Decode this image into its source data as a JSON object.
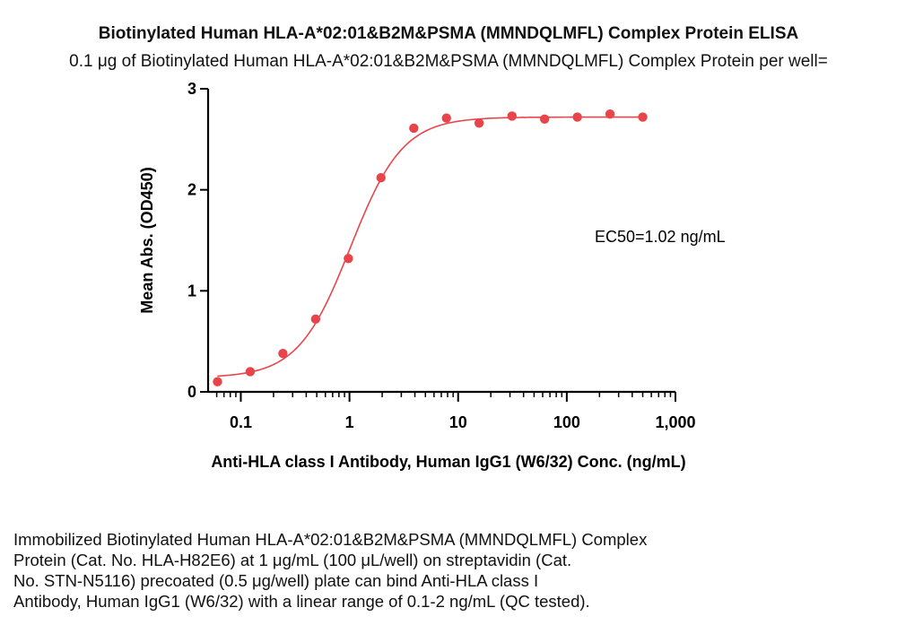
{
  "chart_data": {
    "type": "scatter",
    "title": "Biotinylated Human HLA-A*02:01&B2M&PSMA (MMNDQLMFL) Complex Protein ELISA",
    "subtitle": "0.1 μg of Biotinylated Human HLA-A*02:01&B2M&PSMA (MMNDQLMFL) Complex Protein per well=",
    "xlabel": "Anti-HLA class I Antibody, Human IgG1 (W6/32) Conc. (ng/mL)",
    "ylabel": "Mean Abs. (OD450)",
    "x_scale": "log",
    "xlim": [
      0.05,
      1000
    ],
    "ylim": [
      0,
      3
    ],
    "x_ticks": [
      0.1,
      1,
      10,
      100,
      1000
    ],
    "x_tick_labels": [
      "0.1",
      "1",
      "10",
      "100",
      "1,000"
    ],
    "y_ticks": [
      0,
      1,
      2,
      3
    ],
    "y_tick_labels": [
      "0",
      "1",
      "2",
      "3"
    ],
    "annotation": "EC50=1.02 ng/mL",
    "color": "#e8454a",
    "series": [
      {
        "x": [
          0.061,
          0.122,
          0.244,
          0.488,
          0.977,
          1.95,
          3.91,
          7.81,
          15.6,
          31.3,
          62.5,
          125,
          250,
          500
        ],
        "y": [
          0.1,
          0.2,
          0.38,
          0.72,
          1.32,
          2.12,
          2.61,
          2.71,
          2.66,
          2.73,
          2.7,
          2.72,
          2.75,
          2.72
        ]
      }
    ],
    "fit": {
      "model": "4PL",
      "bottom": 0.14,
      "top": 2.72,
      "ec50": 1.02,
      "hill": 1.8
    }
  },
  "caption": [
    "Immobilized Biotinylated Human HLA-A*02:01&B2M&PSMA (MMNDQLMFL) Complex",
    "Protein (Cat. No. HLA-H82E6) at 1 μg/mL (100 μL/well) on streptavidin (Cat.",
    "No. STN-N5116) precoated (0.5 μg/well) plate can bind Anti-HLA class I",
    "Antibody, Human IgG1 (W6/32) with a linear range of 0.1-2 ng/mL (QC tested)."
  ]
}
